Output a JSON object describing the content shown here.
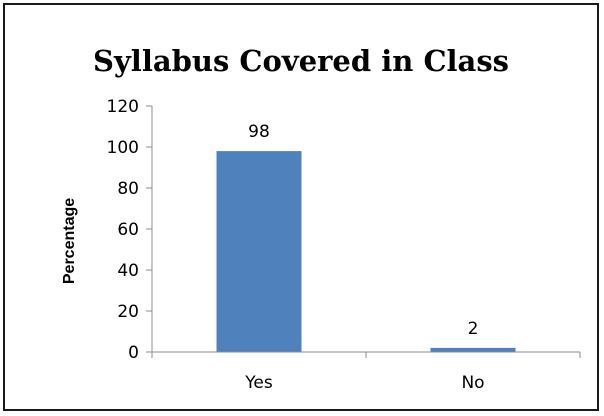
{
  "chart_data": {
    "type": "bar",
    "title": "Syllabus Covered in Class",
    "xlabel": "",
    "ylabel": "Percentage",
    "categories": [
      "Yes",
      "No"
    ],
    "values": [
      98,
      2
    ],
    "data_labels": [
      "98",
      "2"
    ],
    "ylim": [
      0,
      120
    ],
    "yticks": [
      0,
      20,
      40,
      60,
      80,
      100,
      120
    ],
    "grid": false,
    "legend": "none",
    "bar_color": "#4f81bd",
    "axis_color": "#8c8c8c"
  }
}
